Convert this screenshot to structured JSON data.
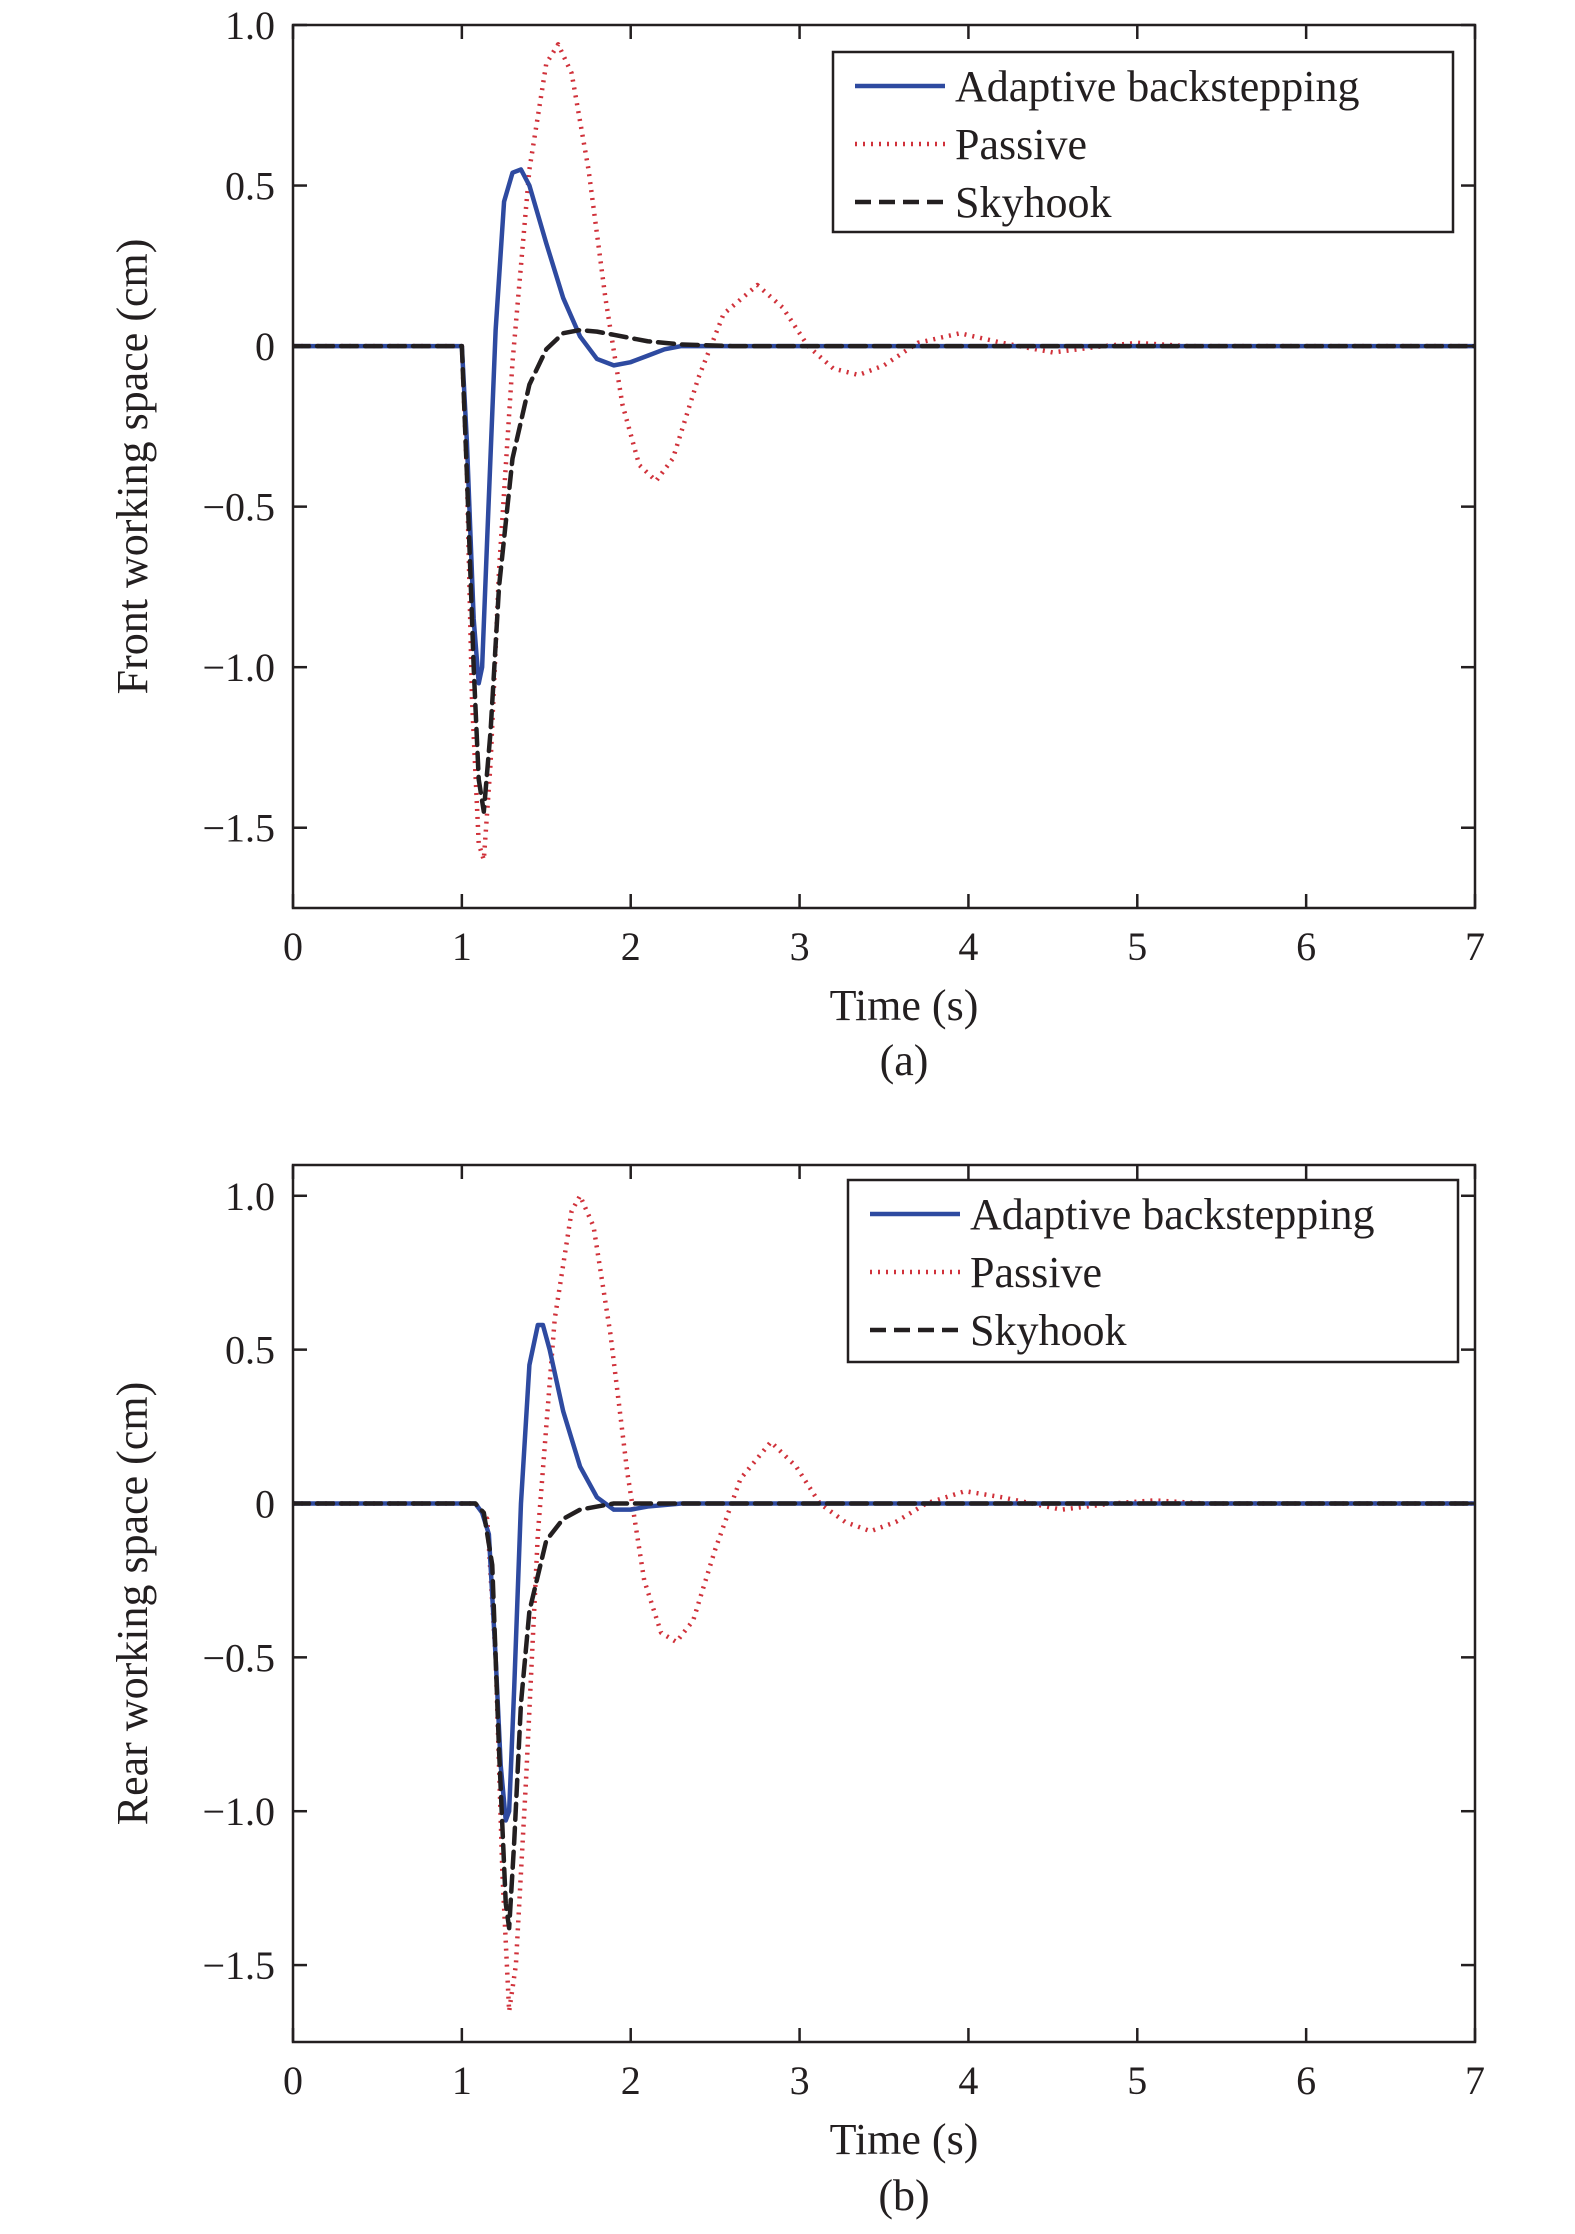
{
  "chart_data": [
    {
      "type": "line",
      "caption": "(a)",
      "xlabel": "Time (s)",
      "ylabel": "Front working space (cm)",
      "xlim": [
        0,
        7
      ],
      "ylim": [
        -1.75,
        1.0
      ],
      "xticks": [
        0,
        1,
        2,
        3,
        4,
        5,
        6,
        7
      ],
      "xtick_labels": [
        "0",
        "1",
        "2",
        "3",
        "4",
        "5",
        "6",
        "7"
      ],
      "yticks": [
        1.0,
        0.5,
        0,
        -0.5,
        -1.0,
        -1.5
      ],
      "ytick_labels": [
        "1.0",
        "0.5",
        "0",
        "−0.5",
        "−1.0",
        "−1.5"
      ],
      "grid": false,
      "legend_position": "top-right",
      "series": [
        {
          "name": "Adaptive backstepping",
          "color": "#2e4aa0",
          "style": "solid",
          "x": [
            0,
            1.0,
            1.03,
            1.07,
            1.1,
            1.12,
            1.15,
            1.2,
            1.25,
            1.3,
            1.35,
            1.4,
            1.5,
            1.6,
            1.7,
            1.8,
            1.9,
            2.0,
            2.1,
            2.2,
            2.3,
            2.5,
            3.0,
            7.0
          ],
          "y": [
            0,
            0,
            -0.3,
            -0.85,
            -1.05,
            -1.0,
            -0.6,
            0.05,
            0.45,
            0.54,
            0.55,
            0.5,
            0.32,
            0.15,
            0.03,
            -0.04,
            -0.06,
            -0.05,
            -0.03,
            -0.01,
            0.0,
            0.0,
            0.0,
            0.0
          ]
        },
        {
          "name": "Passive",
          "color": "#d0313a",
          "style": "dotted",
          "x": [
            0,
            1.0,
            1.03,
            1.06,
            1.1,
            1.13,
            1.17,
            1.22,
            1.3,
            1.4,
            1.5,
            1.57,
            1.65,
            1.75,
            1.85,
            1.95,
            2.05,
            2.15,
            2.25,
            2.4,
            2.55,
            2.75,
            2.9,
            3.05,
            3.2,
            3.35,
            3.5,
            3.7,
            3.95,
            4.2,
            4.5,
            4.8,
            5.0,
            5.3,
            5.6,
            6.0,
            6.5,
            7.0
          ],
          "y": [
            0,
            0,
            -0.4,
            -1.1,
            -1.55,
            -1.6,
            -1.3,
            -0.7,
            -0.05,
            0.55,
            0.88,
            0.94,
            0.85,
            0.55,
            0.15,
            -0.18,
            -0.37,
            -0.42,
            -0.35,
            -0.1,
            0.1,
            0.19,
            0.12,
            0.0,
            -0.07,
            -0.09,
            -0.06,
            0.01,
            0.04,
            0.01,
            -0.02,
            0.0,
            0.01,
            0.0,
            0.0,
            0.0,
            0.0,
            0.0
          ]
        },
        {
          "name": "Skyhook",
          "color": "#231f20",
          "style": "dashed",
          "x": [
            0,
            1.0,
            1.03,
            1.07,
            1.1,
            1.13,
            1.17,
            1.22,
            1.3,
            1.4,
            1.5,
            1.6,
            1.7,
            1.8,
            1.9,
            2.0,
            2.1,
            2.3,
            2.6,
            7.0
          ],
          "y": [
            0,
            0,
            -0.4,
            -1.0,
            -1.35,
            -1.45,
            -1.2,
            -0.75,
            -0.35,
            -0.12,
            -0.01,
            0.04,
            0.05,
            0.045,
            0.035,
            0.025,
            0.015,
            0.005,
            0.0,
            0.0
          ]
        }
      ]
    },
    {
      "type": "line",
      "caption": "(b)",
      "xlabel": "Time (s)",
      "ylabel": "Rear working space (cm)",
      "xlim": [
        0,
        7
      ],
      "ylim": [
        -1.75,
        1.1
      ],
      "xticks": [
        0,
        1,
        2,
        3,
        4,
        5,
        6,
        7
      ],
      "xtick_labels": [
        "0",
        "1",
        "2",
        "3",
        "4",
        "5",
        "6",
        "7"
      ],
      "yticks": [
        1.0,
        0.5,
        0,
        -0.5,
        -1.0,
        -1.5
      ],
      "ytick_labels": [
        "1.0",
        "0.5",
        "0",
        "−0.5",
        "−1.0",
        "−1.5"
      ],
      "grid": false,
      "legend_position": "top-right",
      "series": [
        {
          "name": "Adaptive backstepping",
          "color": "#2e4aa0",
          "style": "solid",
          "x": [
            0,
            1.08,
            1.12,
            1.16,
            1.2,
            1.23,
            1.26,
            1.28,
            1.31,
            1.35,
            1.4,
            1.45,
            1.48,
            1.52,
            1.6,
            1.7,
            1.8,
            1.9,
            2.0,
            2.1,
            2.3,
            2.6,
            7.0
          ],
          "y": [
            0,
            0,
            -0.03,
            -0.1,
            -0.5,
            -0.85,
            -1.03,
            -1.0,
            -0.6,
            0.0,
            0.45,
            0.58,
            0.58,
            0.5,
            0.3,
            0.12,
            0.02,
            -0.02,
            -0.02,
            -0.01,
            0.0,
            0.0,
            0.0
          ]
        },
        {
          "name": "Passive",
          "color": "#d0313a",
          "style": "dotted",
          "x": [
            0,
            1.08,
            1.15,
            1.2,
            1.24,
            1.28,
            1.32,
            1.38,
            1.45,
            1.55,
            1.65,
            1.7,
            1.78,
            1.88,
            1.98,
            2.08,
            2.18,
            2.27,
            2.37,
            2.5,
            2.65,
            2.83,
            2.98,
            3.12,
            3.27,
            3.42,
            3.57,
            3.75,
            3.98,
            4.2,
            4.55,
            4.85,
            5.1,
            5.4,
            5.7,
            6.0,
            6.5,
            7.0
          ],
          "y": [
            0,
            0,
            -0.05,
            -0.5,
            -1.2,
            -1.65,
            -1.5,
            -0.9,
            -0.1,
            0.6,
            0.95,
            1.0,
            0.9,
            0.55,
            0.1,
            -0.25,
            -0.42,
            -0.45,
            -0.38,
            -0.15,
            0.08,
            0.2,
            0.12,
            0.0,
            -0.06,
            -0.09,
            -0.06,
            0.0,
            0.04,
            0.02,
            -0.02,
            0.0,
            0.01,
            0.0,
            0.0,
            0.0,
            0.0,
            0.0
          ]
        },
        {
          "name": "Skyhook",
          "color": "#231f20",
          "style": "dashed",
          "x": [
            0,
            1.08,
            1.13,
            1.18,
            1.22,
            1.26,
            1.28,
            1.31,
            1.35,
            1.4,
            1.5,
            1.6,
            1.7,
            1.8,
            1.9,
            2.0,
            2.2,
            2.5,
            7.0
          ],
          "y": [
            0,
            0,
            -0.03,
            -0.2,
            -0.8,
            -1.3,
            -1.38,
            -1.1,
            -0.65,
            -0.35,
            -0.12,
            -0.05,
            -0.02,
            -0.01,
            0.0,
            0.0,
            0.0,
            0.0,
            0.0
          ]
        }
      ]
    }
  ]
}
